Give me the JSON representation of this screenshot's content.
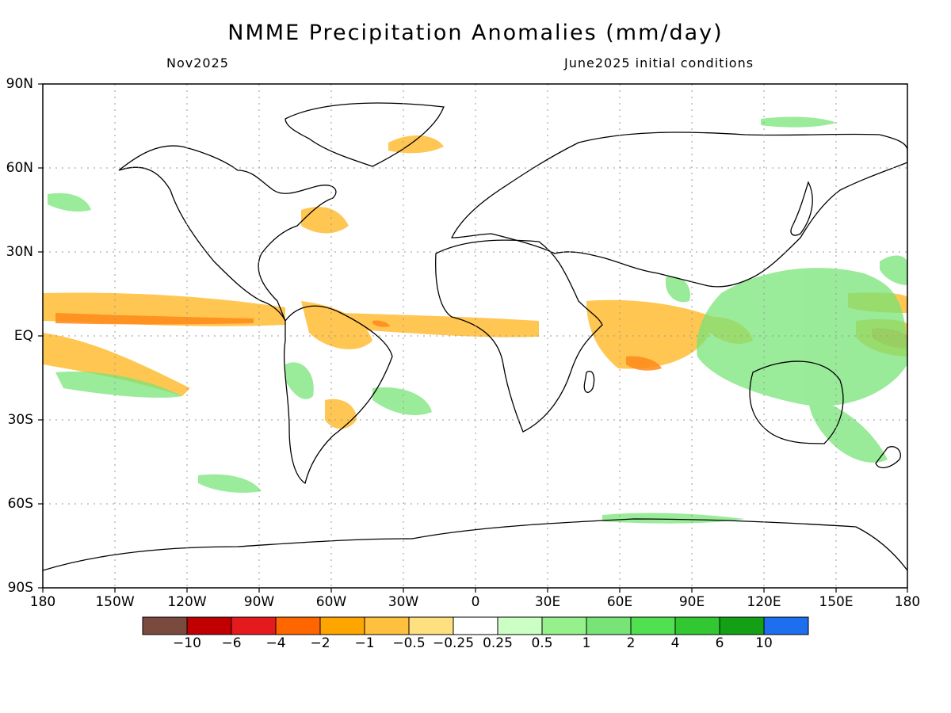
{
  "title": "NMME Precipitation Anomalies (mm/day)",
  "subtitle_left": "Nov2025",
  "subtitle_right": "June2025 initial conditions",
  "lat_labels": [
    "90N",
    "60N",
    "30N",
    "EQ",
    "30S",
    "60S",
    "90S"
  ],
  "lon_labels": [
    "180",
    "150W",
    "120W",
    "90W",
    "60W",
    "30W",
    "0",
    "30E",
    "60E",
    "90E",
    "120E",
    "150E",
    "180"
  ],
  "colorbar": {
    "colors": [
      "#7a4a3f",
      "#c00000",
      "#e41a1c",
      "#ff6600",
      "#ffa500",
      "#ffc040",
      "#ffe080",
      "#ffffff",
      "#ccffc4",
      "#96f08c",
      "#78e478",
      "#50e050",
      "#32c832",
      "#14a014",
      "#1e6ef0"
    ],
    "labels": [
      "−10",
      "−6",
      "−4",
      "−2",
      "−1",
      "−0.5",
      "−0.25",
      "0.25",
      "0.5",
      "1",
      "2",
      "4",
      "6",
      "10"
    ]
  },
  "map_data": {
    "projection": "cylindrical-equidistant",
    "lon_range": [
      -180,
      180
    ],
    "lat_range": [
      -90,
      90
    ],
    "dry_color": "#ffc040",
    "wet_color": "#78e478",
    "strong_dry_color": "#ffa500",
    "coastline_color": "#000000",
    "grid": "dotted"
  }
}
